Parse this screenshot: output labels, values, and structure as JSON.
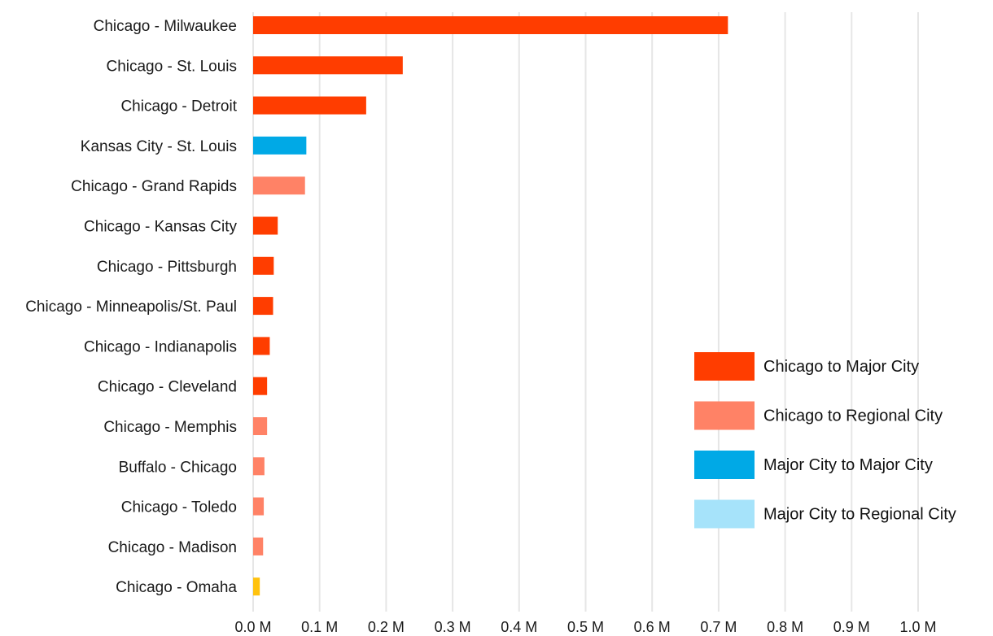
{
  "chart_data": {
    "type": "bar",
    "orientation": "horizontal",
    "title": "",
    "xlabel": "",
    "ylabel": "",
    "xlim": [
      0,
      1.0
    ],
    "x_ticks": [
      "0.0 M",
      "0.1 M",
      "0.2 M",
      "0.3 M",
      "0.4 M",
      "0.5 M",
      "0.6 M",
      "0.7 M",
      "0.8 M",
      "0.9 M",
      "1.0 M"
    ],
    "x_tick_values": [
      0,
      0.1,
      0.2,
      0.3,
      0.4,
      0.5,
      0.6,
      0.7,
      0.8,
      0.9,
      1.0
    ],
    "grid": "vertical",
    "legend_position": "right",
    "categories": [
      "Chicago - Milwaukee",
      "Chicago - St. Louis",
      "Chicago - Detroit",
      "Kansas City - St. Louis",
      "Chicago - Grand Rapids",
      "Chicago - Kansas City",
      "Chicago - Pittsburgh",
      "Chicago - Minneapolis/St. Paul",
      "Chicago - Indianapolis",
      "Chicago - Cleveland",
      "Chicago - Memphis",
      "Buffalo - Chicago",
      "Chicago - Toledo",
      "Chicago - Madison",
      "Chicago - Omaha"
    ],
    "values": [
      0.714,
      0.225,
      0.17,
      0.08,
      0.078,
      0.037,
      0.031,
      0.03,
      0.025,
      0.021,
      0.021,
      0.017,
      0.016,
      0.015,
      0.01
    ],
    "bar_groups": [
      "Chicago to Major City",
      "Chicago to Major City",
      "Chicago to Major City",
      "Major City to Major City",
      "Chicago to Regional City",
      "Chicago to Major City",
      "Chicago to Major City",
      "Chicago to Major City",
      "Chicago to Major City",
      "Chicago to Major City",
      "Chicago to Regional City",
      "Chicago to Regional City",
      "Chicago to Regional City",
      "Chicago to Regional City",
      "other"
    ],
    "group_colors": {
      "Chicago to Major City": "#ff3d00",
      "Chicago to Regional City": "#ff8266",
      "Major City to Major City": "#00a9e6",
      "Major City to Regional City": "#a6e3fa",
      "other": "#ffc20e"
    },
    "legend": [
      {
        "name": "Chicago to Major City",
        "color": "#ff3d00"
      },
      {
        "name": "Chicago to Regional City",
        "color": "#ff8266"
      },
      {
        "name": "Major City to Major City",
        "color": "#00a9e6"
      },
      {
        "name": "Major City to Regional City",
        "color": "#a6e3fa"
      }
    ],
    "gridline_color": "#e6e6e6"
  }
}
